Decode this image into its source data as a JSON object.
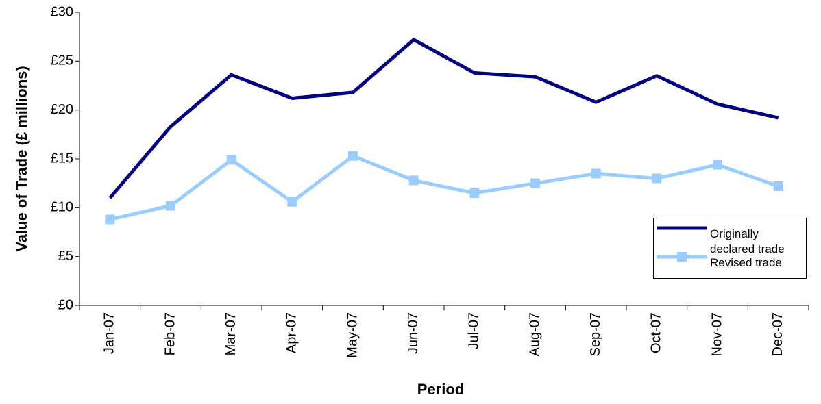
{
  "chart_data": {
    "type": "line",
    "y_label": "Value of Trade (£ millions)",
    "x_label": "Period",
    "categories": [
      "Jan-07",
      "Feb-07",
      "Mar-07",
      "Apr-07",
      "May-07",
      "Jun-07",
      "Jul-07",
      "Aug-07",
      "Sep-07",
      "Oct-07",
      "Nov-07",
      "Dec-07"
    ],
    "series": [
      {
        "name": "Originally declared trade",
        "color": "#000080",
        "marker": false,
        "values": [
          11.0,
          18.3,
          23.6,
          21.2,
          21.8,
          27.2,
          23.8,
          23.4,
          20.8,
          23.5,
          20.6,
          19.2
        ]
      },
      {
        "name": "Revised trade",
        "color": "#99ccff",
        "marker": true,
        "values": [
          8.8,
          10.2,
          14.9,
          10.6,
          15.3,
          12.8,
          11.5,
          12.5,
          13.5,
          13.0,
          14.4,
          12.2
        ]
      }
    ],
    "ylim": [
      0,
      30
    ],
    "yticks": [
      {
        "value": 0,
        "label": "£0"
      },
      {
        "value": 5,
        "label": "£5"
      },
      {
        "value": 10,
        "label": "£10"
      },
      {
        "value": 15,
        "label": "£15"
      },
      {
        "value": 20,
        "label": "£20"
      },
      {
        "value": 25,
        "label": "£25"
      },
      {
        "value": 30,
        "label": "£30"
      }
    ],
    "grid": false,
    "legend": "right"
  }
}
